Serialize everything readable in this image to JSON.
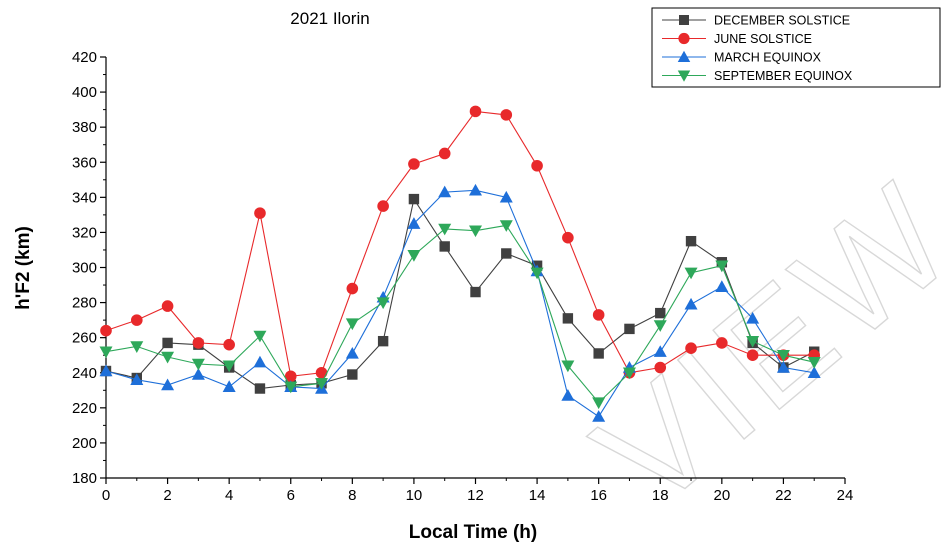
{
  "chart_data": {
    "type": "line",
    "title": "2021 Ilorin",
    "xlabel": "Local Time (h)",
    "ylabel": "h'F2 (km)",
    "xlim": [
      0,
      24
    ],
    "ylim": [
      180,
      420
    ],
    "xticks": [
      0,
      2,
      4,
      6,
      8,
      10,
      12,
      14,
      16,
      18,
      20,
      22,
      24
    ],
    "yticks": [
      180,
      200,
      220,
      240,
      260,
      280,
      300,
      320,
      340,
      360,
      380,
      400,
      420
    ],
    "grid": false,
    "legend_position": "top-right",
    "x": [
      0,
      1,
      2,
      3,
      4,
      5,
      6,
      7,
      8,
      9,
      10,
      11,
      12,
      13,
      14,
      15,
      16,
      17,
      18,
      19,
      20,
      21,
      22,
      23
    ],
    "series": [
      {
        "name": "DECEMBER SOLSTICE",
        "marker": "square",
        "color": "#404040",
        "values": [
          241,
          237,
          257,
          256,
          243,
          231,
          233,
          234,
          239,
          258,
          339,
          312,
          286,
          308,
          301,
          271,
          251,
          265,
          274,
          315,
          303,
          257,
          243,
          252
        ]
      },
      {
        "name": "JUNE SOLSTICE",
        "marker": "circle",
        "color": "#e8292b",
        "values": [
          264,
          270,
          278,
          257,
          256,
          331,
          238,
          240,
          288,
          335,
          359,
          365,
          389,
          387,
          358,
          317,
          273,
          240,
          243,
          254,
          257,
          250,
          250,
          250
        ]
      },
      {
        "name": "MARCH EQUINOX",
        "marker": "triangle-up",
        "color": "#1e6fd9",
        "values": [
          241,
          236,
          233,
          239,
          232,
          246,
          232,
          231,
          251,
          283,
          325,
          343,
          344,
          340,
          298,
          227,
          215,
          243,
          252,
          279,
          289,
          271,
          243,
          240
        ]
      },
      {
        "name": "SEPTEMBER EQUINOX",
        "marker": "triangle-down",
        "color": "#2ea85a",
        "values": [
          252,
          255,
          249,
          245,
          244,
          261,
          232,
          234,
          268,
          280,
          307,
          322,
          321,
          324,
          297,
          244,
          223,
          240,
          267,
          297,
          301,
          258,
          250,
          246
        ]
      }
    ]
  },
  "watermark": "VIEW"
}
